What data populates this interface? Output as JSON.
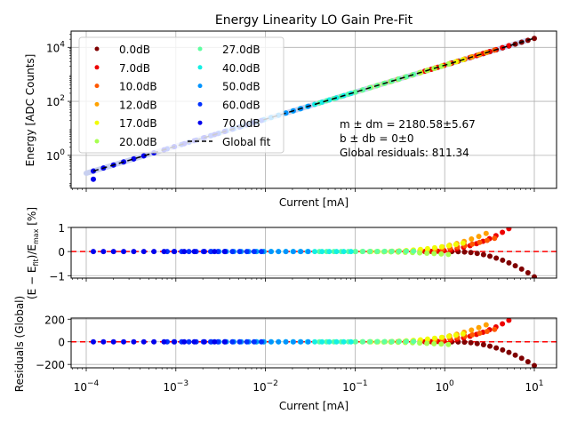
{
  "chart_data": [
    {
      "type": "scatter",
      "title": "Energy Linearity LO Gain Pre-Fit",
      "xlabel": "Current [mA]",
      "ylabel": "Energy [ADC Counts]",
      "xscale": "log",
      "yscale": "log",
      "xlim": [
        7e-05,
        16
      ],
      "ylim": [
        0.06,
        40000
      ],
      "y_ticks": [
        "10^0",
        "10^2",
        "10^4"
      ],
      "grid": true,
      "legend_position": "top-left",
      "legend": [
        "0.0dB",
        "7.0dB",
        "10.0dB",
        "12.0dB",
        "17.0dB",
        "20.0dB",
        "27.0dB",
        "40.0dB",
        "50.0dB",
        "60.0dB",
        "70.0dB",
        "Global fit"
      ],
      "annotation": [
        "m ± dm = 2180.58±5.67",
        "b ± db = 0±0",
        "Global residuals: 811.34"
      ],
      "fit": {
        "name": "Global fit",
        "slope": 2180.58,
        "slope_err": 5.67,
        "intercept": 0,
        "intercept_err": 0
      }
    },
    {
      "type": "scatter",
      "xlabel": "",
      "ylabel": "(E − E_fit)/E_max [%]",
      "xscale": "log",
      "xlim": [
        7e-05,
        16
      ],
      "ylim": [
        -1.1,
        1.0
      ],
      "y_ticks": [
        "−1",
        "0",
        "1"
      ],
      "grid": true,
      "reference_line": {
        "y": 0,
        "color": "#ff0000",
        "style": "dashed"
      }
    },
    {
      "type": "scatter",
      "xlabel": "Current [mA]",
      "ylabel": "Residuals (Global)",
      "xscale": "log",
      "xlim": [
        7e-05,
        16
      ],
      "ylim": [
        -230,
        210
      ],
      "x_ticks": [
        "10^-4",
        "10^-3",
        "10^-2",
        "10^-1",
        "10^0",
        "10^1"
      ],
      "y_ticks": [
        "−200",
        "0",
        "200"
      ],
      "grid": true,
      "reference_line": {
        "y": 0,
        "color": "#ff0000",
        "style": "dashed"
      }
    }
  ],
  "series": [
    {
      "name": "0.0dB",
      "color": "#7f0000",
      "xrange": [
        1.2,
        10
      ],
      "pct_end": -1.05,
      "dir": -1
    },
    {
      "name": "7.0dB",
      "color": "#ed0000",
      "xrange": [
        0.6,
        5.2
      ],
      "pct_end": 0.95,
      "dir": 1
    },
    {
      "name": "10.0dB",
      "color": "#ff5800",
      "xrange": [
        0.3,
        3.6
      ],
      "pct_end": 0.55,
      "dir": 1
    },
    {
      "name": "12.0dB",
      "color": "#ffa100",
      "xrange": [
        0.25,
        2.9
      ],
      "pct_end": 0.75,
      "dir": 1
    },
    {
      "name": "17.0dB",
      "color": "#f1fc06",
      "xrange": [
        0.15,
        1.6
      ],
      "pct_end": 0.35,
      "dir": 1
    },
    {
      "name": "20.0dB",
      "color": "#a7ff50",
      "xrange": [
        0.1,
        1.1
      ],
      "pct_end": -0.12,
      "dir": -1
    },
    {
      "name": "27.0dB",
      "color": "#5effa1",
      "xrange": [
        0.04,
        0.45
      ],
      "pct_end": 0.02,
      "dir": 1
    },
    {
      "name": "40.0dB",
      "color": "#13f0e4",
      "xrange": [
        0.008,
        0.09
      ],
      "pct_end": 0.0,
      "dir": 1
    },
    {
      "name": "50.0dB",
      "color": "#0094ff",
      "xrange": [
        0.0025,
        0.03
      ],
      "pct_end": 0.0,
      "dir": 1
    },
    {
      "name": "60.0dB",
      "color": "#0030ff",
      "xrange": [
        0.0008,
        0.009
      ],
      "pct_end": 0.0,
      "dir": 1
    },
    {
      "name": "70.0dB",
      "color": "#0000ed",
      "xrange": [
        0.00012,
        0.0035
      ],
      "pct_end": 0.0,
      "dir": 1
    }
  ]
}
